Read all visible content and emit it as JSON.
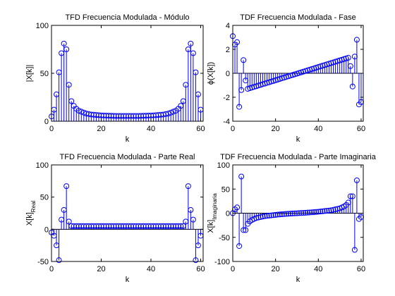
{
  "chart_data": [
    {
      "type": "stem",
      "title": "TFD Frecuencia Modulada - Módulo",
      "xlabel": "k",
      "ylabel": "|X[k]|",
      "color": "#0000ff",
      "xlim": [
        0,
        61
      ],
      "xticks": [
        0,
        20,
        40,
        60
      ],
      "ylim": [
        0,
        100
      ],
      "yticks": [
        0,
        50,
        100
      ],
      "x": [
        0,
        1,
        2,
        3,
        4,
        5,
        6,
        7,
        8,
        9,
        10,
        11,
        12,
        13,
        14,
        15,
        16,
        17,
        18,
        19,
        20,
        21,
        22,
        23,
        24,
        25,
        26,
        27,
        28,
        29,
        30,
        31,
        32,
        33,
        34,
        35,
        36,
        37,
        38,
        39,
        40,
        41,
        42,
        43,
        44,
        45,
        46,
        47,
        48,
        49,
        50,
        51,
        52,
        53,
        54,
        55,
        56,
        57,
        58,
        59,
        60
      ],
      "values": [
        5,
        12,
        28,
        51,
        71,
        81,
        75,
        38,
        21,
        16,
        13,
        11,
        10,
        9,
        8,
        7.5,
        7,
        6.8,
        6.5,
        6.3,
        6.1,
        6,
        5.9,
        5.8,
        5.7,
        5.6,
        5.5,
        5.5,
        5.5,
        5.5,
        5.5,
        5.5,
        5.5,
        5.5,
        5.5,
        5.5,
        5.6,
        5.7,
        5.8,
        5.9,
        6,
        6.1,
        6.3,
        6.5,
        6.8,
        7,
        7.5,
        8,
        9,
        10,
        11,
        13,
        16,
        21,
        38,
        75,
        81,
        71,
        51,
        28,
        12
      ]
    },
    {
      "type": "stem",
      "title": "TDF Frecuencia Modulada - Fase",
      "xlabel": "k",
      "ylabel": "ϕ(X[k])",
      "color": "#0000ff",
      "xlim": [
        0,
        61
      ],
      "xticks": [
        0,
        20,
        40,
        60
      ],
      "ylim": [
        -4,
        4
      ],
      "yticks": [
        -4,
        -2,
        0,
        2,
        4
      ],
      "x": [
        0,
        1,
        2,
        3,
        4,
        5,
        6,
        7,
        8,
        9,
        10,
        11,
        12,
        13,
        14,
        15,
        16,
        17,
        18,
        19,
        20,
        21,
        22,
        23,
        24,
        25,
        26,
        27,
        28,
        29,
        30,
        31,
        32,
        33,
        34,
        35,
        36,
        37,
        38,
        39,
        40,
        41,
        42,
        43,
        44,
        45,
        46,
        47,
        48,
        49,
        50,
        51,
        52,
        53,
        54,
        55,
        56,
        57,
        58,
        59,
        60
      ],
      "values": [
        3.1,
        2.4,
        2.6,
        -2.8,
        -1.4,
        1.1,
        -0.6,
        -1.3,
        -1.24,
        -1.19,
        -1.13,
        -1.08,
        -1.02,
        -0.97,
        -0.91,
        -0.86,
        -0.8,
        -0.75,
        -0.69,
        -0.64,
        -0.58,
        -0.53,
        -0.47,
        -0.41,
        -0.36,
        -0.3,
        -0.25,
        -0.19,
        -0.14,
        -0.08,
        -0.03,
        0.03,
        0.08,
        0.14,
        0.19,
        0.25,
        0.3,
        0.36,
        0.41,
        0.47,
        0.53,
        0.58,
        0.64,
        0.69,
        0.75,
        0.8,
        0.86,
        0.91,
        0.97,
        1.02,
        1.08,
        1.13,
        1.19,
        1.24,
        1.3,
        0.6,
        -1.1,
        1.4,
        2.8,
        -2.6,
        -2.4
      ]
    },
    {
      "type": "stem",
      "title": "TFD Frecuencia Modulada - Parte Real",
      "xlabel": "k",
      "ylabel": "X[k]",
      "ylabel_subscript": "Real",
      "color": "#0000ff",
      "xlim": [
        0,
        61
      ],
      "xticks": [
        0,
        20,
        40,
        60
      ],
      "ylim": [
        -50,
        100
      ],
      "yticks": [
        -50,
        0,
        50,
        100
      ],
      "x": [
        0,
        1,
        2,
        3,
        4,
        5,
        6,
        7,
        8,
        9,
        10,
        11,
        12,
        13,
        14,
        15,
        16,
        17,
        18,
        19,
        20,
        21,
        22,
        23,
        24,
        25,
        26,
        27,
        28,
        29,
        30,
        31,
        32,
        33,
        34,
        35,
        36,
        37,
        38,
        39,
        40,
        41,
        42,
        43,
        44,
        45,
        46,
        47,
        48,
        49,
        50,
        51,
        52,
        53,
        54,
        55,
        56,
        57,
        58,
        59,
        60
      ],
      "values": [
        -5,
        -10,
        -25,
        -48,
        15,
        30,
        67,
        12,
        5,
        5,
        5,
        5,
        5,
        5,
        5,
        5,
        5,
        5,
        5,
        5,
        5,
        5,
        5,
        5,
        5,
        5,
        5,
        5,
        5,
        5,
        5,
        5,
        5,
        5,
        5,
        5,
        5,
        5,
        5,
        5,
        5,
        5,
        5,
        5,
        5,
        5,
        5,
        5,
        5,
        5,
        5,
        5,
        5,
        5,
        12,
        67,
        30,
        15,
        -48,
        -25,
        -10
      ]
    },
    {
      "type": "stem",
      "title": "TDF Frecuencia Modulada - Parte Imaginaria",
      "xlabel": "k",
      "ylabel": "X[k]",
      "ylabel_subscript": "Imaginaria",
      "color": "#0000ff",
      "xlim": [
        0,
        61
      ],
      "xticks": [
        0,
        20,
        40,
        60
      ],
      "ylim": [
        -100,
        100
      ],
      "yticks": [
        -100,
        -50,
        0,
        50,
        100
      ],
      "x": [
        0,
        1,
        2,
        3,
        4,
        5,
        6,
        7,
        8,
        9,
        10,
        11,
        12,
        13,
        14,
        15,
        16,
        17,
        18,
        19,
        20,
        21,
        22,
        23,
        24,
        25,
        26,
        27,
        28,
        29,
        30,
        31,
        32,
        33,
        34,
        35,
        36,
        37,
        38,
        39,
        40,
        41,
        42,
        43,
        44,
        45,
        46,
        47,
        48,
        49,
        50,
        51,
        52,
        53,
        54,
        55,
        56,
        57,
        58,
        59,
        60
      ],
      "values": [
        0,
        8,
        12,
        -68,
        76,
        -35,
        -35,
        -22,
        -17,
        -14,
        -12,
        -10,
        -9,
        -8,
        -7,
        -6,
        -5.5,
        -5,
        -4.5,
        -4,
        -3.5,
        -3,
        -2.6,
        -2.2,
        -1.8,
        -1.5,
        -1.2,
        -0.9,
        -0.6,
        -0.3,
        -0.1,
        0.1,
        0.3,
        0.6,
        0.9,
        1.2,
        1.5,
        1.8,
        2.2,
        2.6,
        3,
        3.5,
        4,
        4.5,
        5,
        5.5,
        6,
        7,
        8,
        9,
        10,
        12,
        14,
        17,
        22,
        35,
        35,
        -76,
        68,
        -12,
        -8
      ]
    }
  ]
}
